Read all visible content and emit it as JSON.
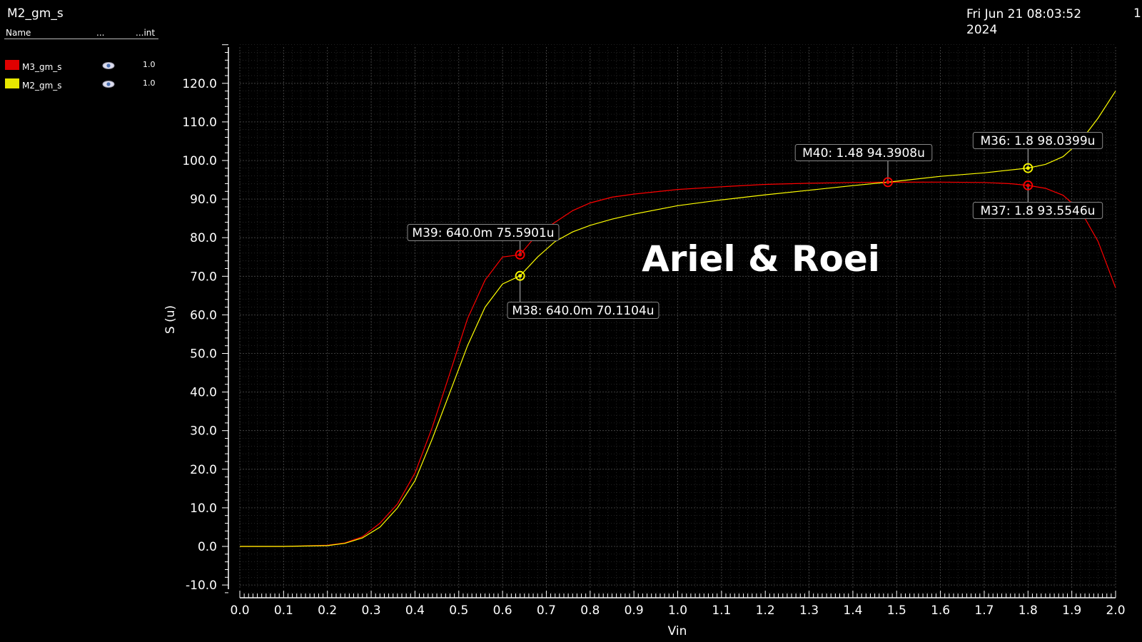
{
  "header": {
    "title": "M2_gm_s",
    "timestamp_line1": "Fri Jun 21 08:03:52",
    "timestamp_line2": "2024",
    "page_number": "1"
  },
  "legend": {
    "col_name": "Name",
    "col_visible": "...",
    "col_int": "...int",
    "items": [
      {
        "label": "M3_gm_s",
        "color": "#ff0000",
        "value": "1.0",
        "icon": "eye-icon"
      },
      {
        "label": "M2_gm_s",
        "color": "#ffff00",
        "value": "1.0",
        "icon": "eye-icon"
      }
    ]
  },
  "watermark": "Ariel & Roei",
  "chart_data": {
    "type": "line",
    "xlabel": "Vin",
    "ylabel": "S (u)",
    "xlim": [
      0.0,
      2.0
    ],
    "ylim": [
      -12,
      130
    ],
    "xticks": [
      0.0,
      0.1,
      0.2,
      0.3,
      0.4,
      0.5,
      0.6,
      0.7,
      0.8,
      0.9,
      1.0,
      1.1,
      1.2,
      1.3,
      1.4,
      1.5,
      1.6,
      1.7,
      1.8,
      1.9,
      2.0
    ],
    "yticks": [
      -10,
      0,
      10,
      20,
      30,
      40,
      50,
      60,
      70,
      80,
      90,
      100,
      110,
      120
    ],
    "grid": true,
    "series": [
      {
        "name": "M3_gm_s",
        "color": "#ff0000",
        "x": [
          0,
          0.1,
          0.2,
          0.24,
          0.28,
          0.32,
          0.36,
          0.4,
          0.44,
          0.48,
          0.52,
          0.56,
          0.6,
          0.64,
          0.68,
          0.72,
          0.76,
          0.8,
          0.85,
          0.9,
          1.0,
          1.1,
          1.2,
          1.3,
          1.4,
          1.48,
          1.6,
          1.7,
          1.76,
          1.8,
          1.84,
          1.88,
          1.92,
          1.96,
          2.0
        ],
        "y": [
          0,
          0,
          0.3,
          0.9,
          2.5,
          6,
          11,
          19,
          31,
          45,
          59,
          69,
          75,
          75.59,
          81,
          84,
          87,
          89,
          90.5,
          91.3,
          92.5,
          93.2,
          93.8,
          94.1,
          94.3,
          94.39,
          94.4,
          94.3,
          94.0,
          93.55,
          92.8,
          91,
          87,
          79,
          67
        ]
      },
      {
        "name": "M2_gm_s",
        "color": "#ffff00",
        "x": [
          0,
          0.1,
          0.2,
          0.24,
          0.28,
          0.32,
          0.36,
          0.4,
          0.44,
          0.48,
          0.52,
          0.56,
          0.6,
          0.64,
          0.68,
          0.72,
          0.76,
          0.8,
          0.85,
          0.9,
          1.0,
          1.1,
          1.2,
          1.3,
          1.4,
          1.48,
          1.6,
          1.7,
          1.8,
          1.84,
          1.88,
          1.92,
          1.96,
          2.0
        ],
        "y": [
          0,
          0,
          0.2,
          0.8,
          2.2,
          5,
          10,
          17,
          28,
          40,
          52,
          62,
          68,
          70.11,
          75,
          79,
          81.5,
          83.2,
          84.8,
          86.1,
          88.3,
          89.8,
          91.1,
          92.3,
          93.5,
          94.39,
          95.9,
          96.8,
          98.04,
          99,
          101,
          105,
          111,
          118
        ]
      }
    ],
    "markers": [
      {
        "label": "M36: 1.8 98.0399u",
        "x": 1.8,
        "y": 98.0399,
        "color": "#ffff00"
      },
      {
        "label": "M37: 1.8 93.5546u",
        "x": 1.8,
        "y": 93.5546,
        "color": "#ff0000"
      },
      {
        "label": "M38: 640.0m 70.1104u",
        "x": 0.64,
        "y": 70.1104,
        "color": "#ffff00"
      },
      {
        "label": "M39: 640.0m 75.5901u",
        "x": 0.64,
        "y": 75.5901,
        "color": "#ff0000"
      },
      {
        "label": "M40: 1.48 94.3908u",
        "x": 1.48,
        "y": 94.3908,
        "color": "#ff0000"
      }
    ]
  }
}
